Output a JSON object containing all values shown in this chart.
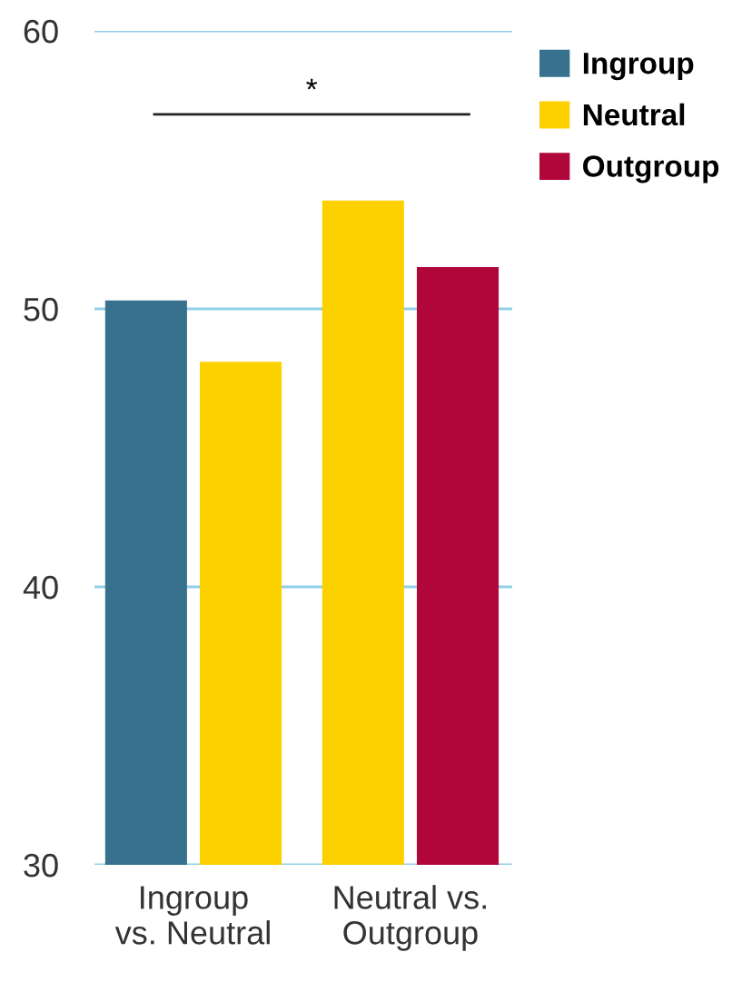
{
  "chart_data": {
    "type": "bar",
    "categories": [
      "Ingroup\nvs. Neutral",
      "Neutral vs.\nOutgroup"
    ],
    "series": [
      {
        "name": "Ingroup",
        "color": "#37718e",
        "values": [
          50.3,
          null
        ]
      },
      {
        "name": "Neutral",
        "color": "#fdd000",
        "values": [
          48.1,
          53.9
        ]
      },
      {
        "name": "Outgroup",
        "color": "#b0063a",
        "values": [
          null,
          51.5
        ]
      }
    ],
    "ylim": [
      30,
      60
    ],
    "yticks": [
      30,
      40,
      50,
      60
    ],
    "grid": "y",
    "legend": "top right",
    "annotations": [
      "*"
    ]
  }
}
